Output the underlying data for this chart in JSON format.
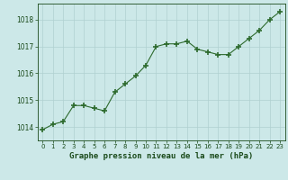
{
  "x": [
    0,
    1,
    2,
    3,
    4,
    5,
    6,
    7,
    8,
    9,
    10,
    11,
    12,
    13,
    14,
    15,
    16,
    17,
    18,
    19,
    20,
    21,
    22,
    23
  ],
  "y": [
    1013.9,
    1014.1,
    1014.2,
    1014.8,
    1014.8,
    1014.7,
    1014.6,
    1015.3,
    1015.6,
    1015.9,
    1016.3,
    1017.0,
    1017.1,
    1017.1,
    1017.2,
    1016.9,
    1016.8,
    1016.7,
    1016.7,
    1017.0,
    1017.3,
    1017.6,
    1018.0,
    1018.3
  ],
  "line_color": "#2d6a2d",
  "marker_color": "#2d6a2d",
  "bg_color": "#cce8e8",
  "grid_color": "#b0d0d0",
  "xlabel": "Graphe pression niveau de la mer (hPa)",
  "xlabel_color": "#1a4a1a",
  "tick_color": "#1a4a1a",
  "ylim": [
    1013.5,
    1018.6
  ],
  "yticks": [
    1014,
    1015,
    1016,
    1017,
    1018
  ],
  "xticks": [
    0,
    1,
    2,
    3,
    4,
    5,
    6,
    7,
    8,
    9,
    10,
    11,
    12,
    13,
    14,
    15,
    16,
    17,
    18,
    19,
    20,
    21,
    22,
    23
  ]
}
